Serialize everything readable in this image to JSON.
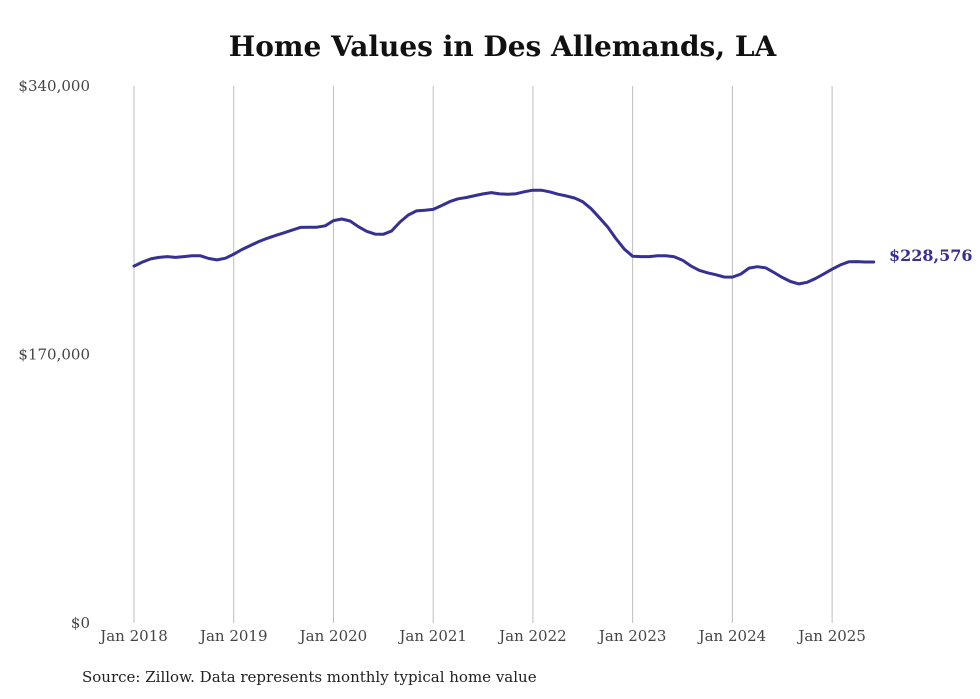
{
  "chart_data": {
    "type": "line",
    "title": "Home Values in Des Allemands, LA",
    "xlabel": "",
    "ylabel": "",
    "ylim": [
      0,
      340000
    ],
    "y_ticks": [
      {
        "value": 0,
        "label": "$0"
      },
      {
        "value": 170000,
        "label": "$170,000"
      },
      {
        "value": 340000,
        "label": "$340,000"
      }
    ],
    "x_ticks": [
      {
        "value": 2018.0,
        "label": "Jan 2018"
      },
      {
        "value": 2019.0,
        "label": "Jan 2019"
      },
      {
        "value": 2020.0,
        "label": "Jan 2020"
      },
      {
        "value": 2021.0,
        "label": "Jan 2021"
      },
      {
        "value": 2022.0,
        "label": "Jan 2022"
      },
      {
        "value": 2023.0,
        "label": "Jan 2023"
      },
      {
        "value": 2024.0,
        "label": "Jan 2024"
      },
      {
        "value": 2025.0,
        "label": "Jan 2025"
      }
    ],
    "xlim": [
      2018.0,
      2025.42
    ],
    "grid": "vertical",
    "series": [
      {
        "color": "#363092",
        "x": [
          2018.0,
          2018.083,
          2018.167,
          2018.25,
          2018.333,
          2018.417,
          2018.5,
          2018.583,
          2018.667,
          2018.75,
          2018.833,
          2018.917,
          2019.0,
          2019.083,
          2019.167,
          2019.25,
          2019.333,
          2019.417,
          2019.5,
          2019.583,
          2019.667,
          2019.75,
          2019.833,
          2019.917,
          2020.0,
          2020.083,
          2020.167,
          2020.25,
          2020.333,
          2020.417,
          2020.5,
          2020.583,
          2020.667,
          2020.75,
          2020.833,
          2020.917,
          2021.0,
          2021.083,
          2021.167,
          2021.25,
          2021.333,
          2021.417,
          2021.5,
          2021.583,
          2021.667,
          2021.75,
          2021.833,
          2021.917,
          2022.0,
          2022.083,
          2022.167,
          2022.25,
          2022.333,
          2022.417,
          2022.5,
          2022.583,
          2022.667,
          2022.75,
          2022.833,
          2022.917,
          2023.0,
          2023.083,
          2023.167,
          2023.25,
          2023.333,
          2023.417,
          2023.5,
          2023.583,
          2023.667,
          2023.75,
          2023.833,
          2023.917,
          2024.0,
          2024.083,
          2024.167,
          2024.25,
          2024.333,
          2024.417,
          2024.5,
          2024.583,
          2024.667,
          2024.75,
          2024.833,
          2024.917,
          2025.0,
          2025.083,
          2025.167,
          2025.25,
          2025.333,
          2025.417
        ],
        "values": [
          226000,
          228500,
          230500,
          231500,
          232000,
          231500,
          232000,
          232500,
          232500,
          230800,
          229900,
          231000,
          233500,
          236500,
          239000,
          241500,
          243500,
          245300,
          247000,
          248700,
          250500,
          250600,
          250600,
          251500,
          254800,
          255800,
          254500,
          250900,
          248000,
          246200,
          246100,
          248200,
          253900,
          258300,
          260900,
          261300,
          261900,
          264300,
          266800,
          268600,
          269400,
          270600,
          271700,
          272500,
          271700,
          271500,
          271800,
          273100,
          274000,
          274000,
          273000,
          271500,
          270400,
          269100,
          266700,
          262300,
          256600,
          250700,
          243300,
          236700,
          232200,
          232000,
          232000,
          232500,
          232500,
          231900,
          229700,
          226100,
          223300,
          221700,
          220500,
          219100,
          219000,
          220900,
          224700,
          225600,
          224900,
          221900,
          218800,
          216200,
          214700,
          215700,
          218100,
          221000,
          224000,
          226700,
          228700,
          228800,
          228576,
          228576
        ],
        "end_label": "$228,576"
      }
    ]
  },
  "source": "Source: Zillow. Data represents monthly typical home value"
}
